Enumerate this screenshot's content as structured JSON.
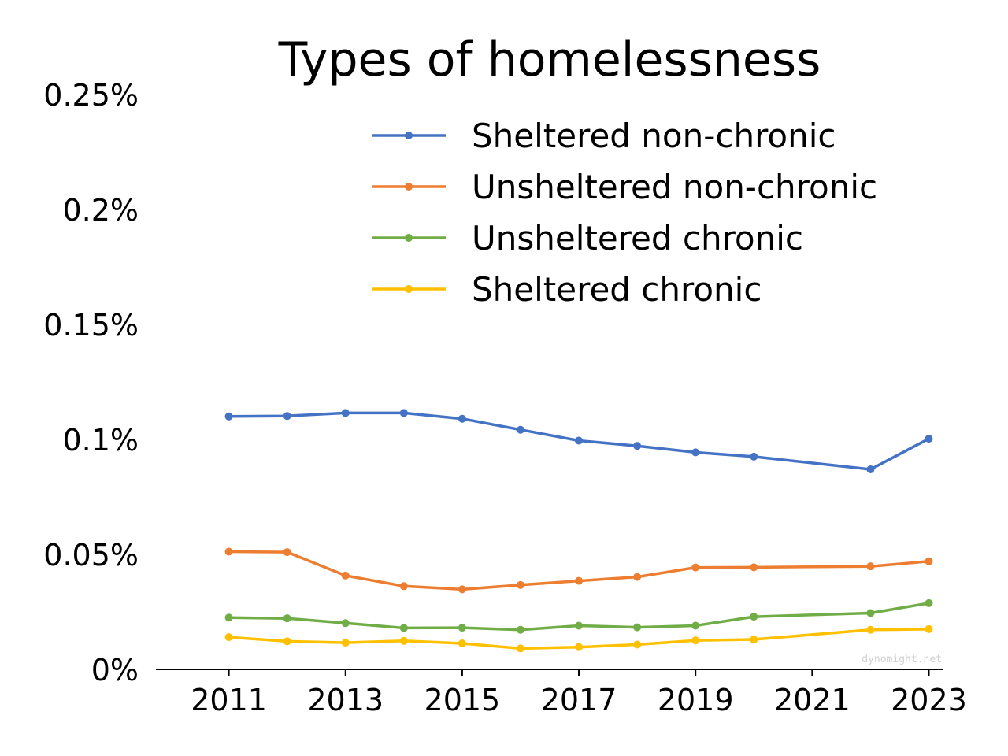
{
  "chart_data": {
    "type": "line",
    "title": "Types of homelessness",
    "xlabel": "",
    "ylabel": "",
    "x": [
      2011,
      2012,
      2013,
      2014,
      2015,
      2016,
      2017,
      2018,
      2019,
      2020,
      2022,
      2023
    ],
    "xticks": [
      "2011",
      "2013",
      "2015",
      "2017",
      "2019",
      "2021",
      "2023"
    ],
    "yticks": [
      "0%",
      "0.05%",
      "0.1%",
      "0.15%",
      "0.2%",
      "0.25%"
    ],
    "xlim": [
      2009.75,
      2023.25
    ],
    "ylim": [
      0,
      0.25
    ],
    "grid": false,
    "legend": "top-right",
    "series": [
      {
        "name": "Sheltered non-chronic",
        "color": "#4472C4",
        "values": [
          0.11,
          0.1102,
          0.1115,
          0.1115,
          0.109,
          0.1042,
          0.0995,
          0.0972,
          0.0944,
          0.0925,
          0.087,
          0.1003
        ]
      },
      {
        "name": "Unsheltered non-chronic",
        "color": "#ED7D31",
        "values": [
          0.0512,
          0.051,
          0.0408,
          0.0362,
          0.0348,
          0.0367,
          0.0385,
          0.0402,
          0.0443,
          0.0444,
          0.0448,
          0.047
        ]
      },
      {
        "name": "Unsheltered chronic",
        "color": "#70AD47",
        "values": [
          0.0225,
          0.0222,
          0.0201,
          0.018,
          0.0181,
          0.0172,
          0.019,
          0.0183,
          0.019,
          0.0229,
          0.0245,
          0.0288
        ]
      },
      {
        "name": "Sheltered chronic",
        "color": "#FFC000",
        "values": [
          0.014,
          0.0122,
          0.0116,
          0.0124,
          0.0113,
          0.0091,
          0.0097,
          0.0108,
          0.0126,
          0.013,
          0.0172,
          0.0175
        ]
      }
    ]
  },
  "watermark": "dynomight.net"
}
